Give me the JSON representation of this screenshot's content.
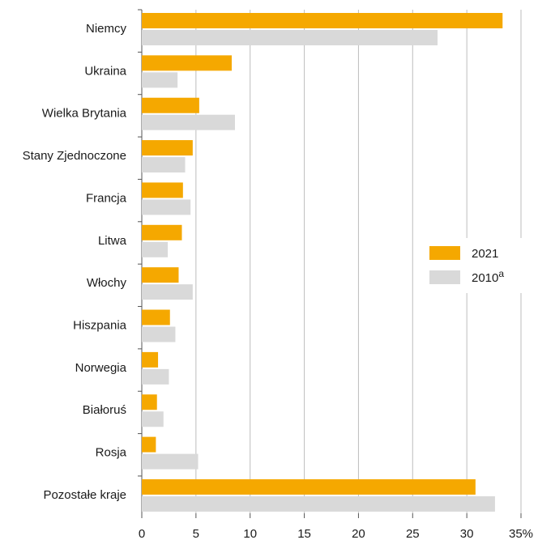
{
  "chart_data": {
    "type": "bar",
    "orientation": "horizontal",
    "categories": [
      "Niemcy",
      "Ukraina",
      "Wielka Brytania",
      "Stany Zjednoczone",
      "Francja",
      "Litwa",
      "Włochy",
      "Hiszpania",
      "Norwegia",
      "Białoruś",
      "Rosja",
      "Pozostałe kraje"
    ],
    "series": [
      {
        "name": "2021",
        "color": "#f5a800",
        "values": [
          33.3,
          8.3,
          5.3,
          4.7,
          3.8,
          3.7,
          3.4,
          2.6,
          1.5,
          1.4,
          1.3,
          30.8
        ]
      },
      {
        "name": "2010",
        "name_superscript": "a",
        "color": "#d9d9d9",
        "values": [
          27.3,
          3.3,
          8.6,
          4.0,
          4.5,
          2.4,
          4.7,
          3.1,
          2.5,
          2.0,
          5.2,
          32.6
        ]
      }
    ],
    "xlim": [
      0,
      35
    ],
    "xticks": [
      "0",
      "5",
      "10",
      "15",
      "20",
      "25",
      "30",
      "35%"
    ],
    "grid": true,
    "legend_position": "right-middle"
  }
}
